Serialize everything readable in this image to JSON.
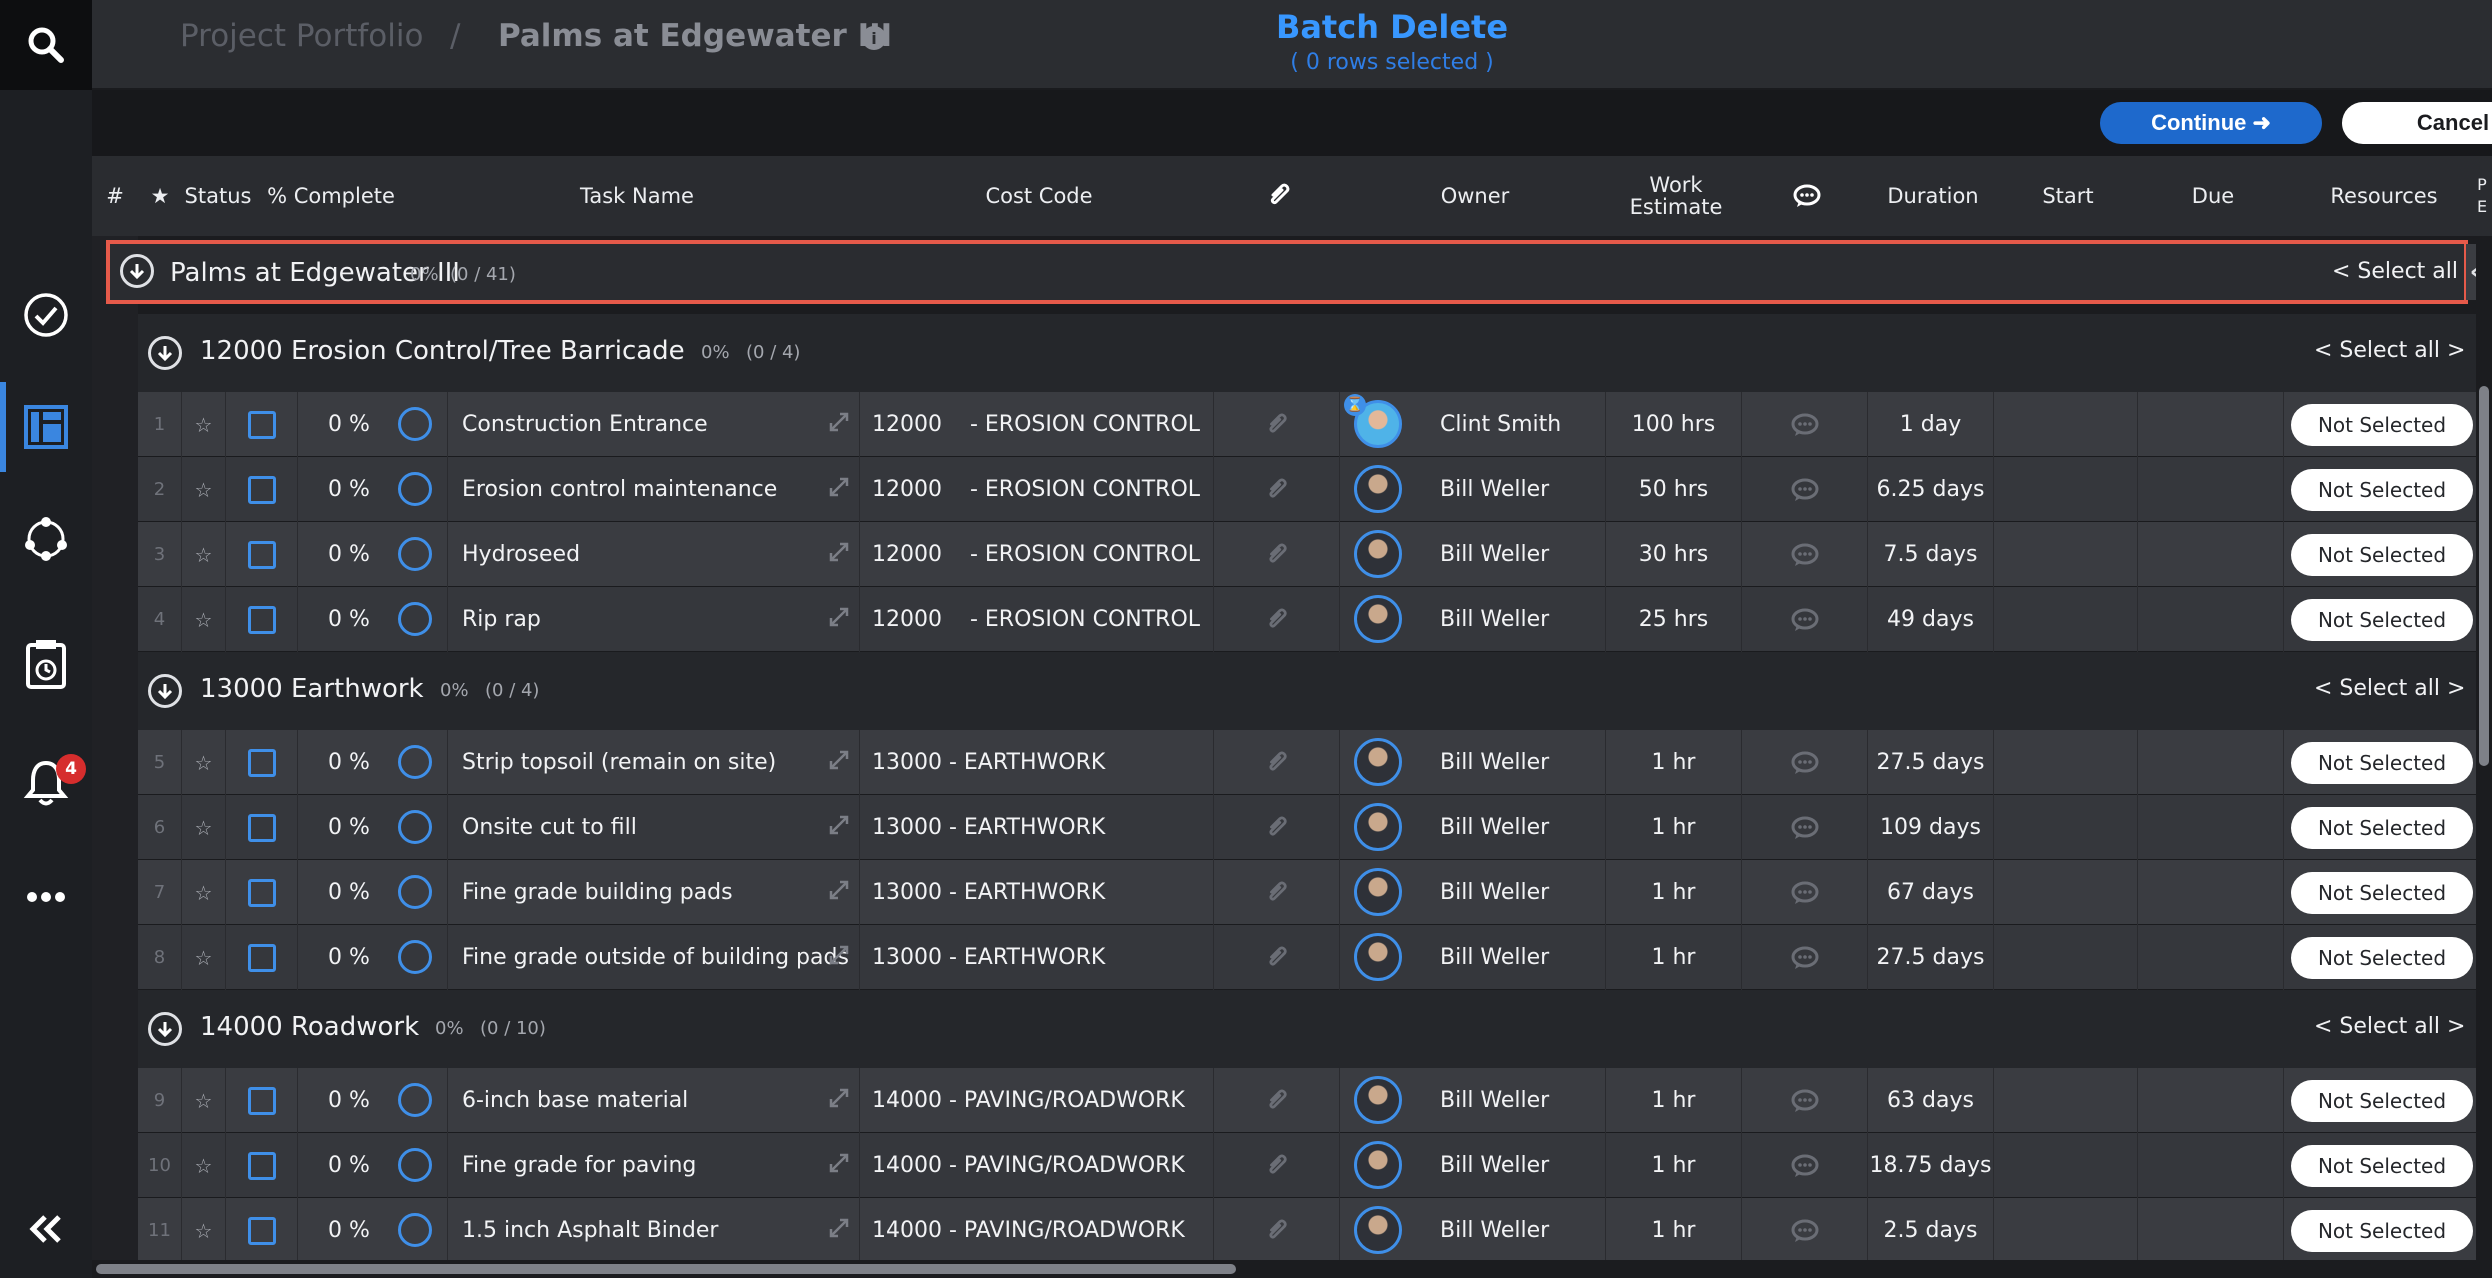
{
  "header": {
    "breadcrumb_root": "Project Portfolio",
    "breadcrumb_sep": "/",
    "breadcrumb_current": "Palms at Edgewater III",
    "info_glyph": "i",
    "batch_title": "Batch Delete",
    "batch_subtitle": "( 0 rows selected )"
  },
  "sidebar": {
    "notifications_count": "4",
    "items": [
      {
        "icon": "search-icon"
      },
      {
        "icon": "check-circle-icon"
      },
      {
        "icon": "board-icon"
      },
      {
        "icon": "network-icon"
      },
      {
        "icon": "timesheet-icon"
      },
      {
        "icon": "bell-icon"
      },
      {
        "icon": "more-icon"
      },
      {
        "icon": "double-chevron-left-icon"
      }
    ]
  },
  "actions": {
    "continue_label": "Continue ➜",
    "cancel_label": "Cancel"
  },
  "columns": {
    "num": "#",
    "star": "★",
    "status": "Status",
    "pct": "% Complete",
    "task": "Task Name",
    "cost": "Cost Code",
    "attach": "📎",
    "owner": "Owner",
    "work": "Work Estimate",
    "comment": "💬",
    "duration": "Duration",
    "start": "Start",
    "due": "Due",
    "resources": "Resources",
    "extra": "P E"
  },
  "project": {
    "name": "Palms at Edgewater III",
    "pct": "0%",
    "count": "(0 / 41)",
    "select_all": "< Select all >",
    "collapse_glyph": "«"
  },
  "groups": [
    {
      "title": "12000 Erosion Control/Tree Barricade",
      "pct": "0%",
      "count": "(0 / 4)",
      "select_all": "< Select all >",
      "rows": [
        {
          "num": "1",
          "pct": "0 %",
          "task": "Construction Entrance",
          "cost": "12000    - EROSION CONTROL",
          "owner": "Clint Smith",
          "work": "100 hrs",
          "duration": "1 day",
          "resources": "Not Selected"
        },
        {
          "num": "2",
          "pct": "0 %",
          "task": "Erosion control maintenance",
          "cost": "12000    - EROSION CONTROL",
          "owner": "Bill Weller",
          "work": "50 hrs",
          "duration": "6.25 days",
          "resources": "Not Selected"
        },
        {
          "num": "3",
          "pct": "0 %",
          "task": "Hydroseed",
          "cost": "12000    - EROSION CONTROL",
          "owner": "Bill Weller",
          "work": "30 hrs",
          "duration": "7.5 days",
          "resources": "Not Selected"
        },
        {
          "num": "4",
          "pct": "0 %",
          "task": "Rip rap",
          "cost": "12000    - EROSION CONTROL",
          "owner": "Bill Weller",
          "work": "25 hrs",
          "duration": "49 days",
          "resources": "Not Selected"
        }
      ]
    },
    {
      "title": "13000 Earthwork",
      "pct": "0%",
      "count": "(0 / 4)",
      "select_all": "< Select all >",
      "rows": [
        {
          "num": "5",
          "pct": "0 %",
          "task": "Strip topsoil (remain on site)",
          "cost": "13000 - EARTHWORK",
          "owner": "Bill Weller",
          "work": "1 hr",
          "duration": "27.5 days",
          "resources": "Not Selected"
        },
        {
          "num": "6",
          "pct": "0 %",
          "task": "Onsite cut to fill",
          "cost": "13000 - EARTHWORK",
          "owner": "Bill Weller",
          "work": "1 hr",
          "duration": "109 days",
          "resources": "Not Selected"
        },
        {
          "num": "7",
          "pct": "0 %",
          "task": "Fine grade building pads",
          "cost": "13000 - EARTHWORK",
          "owner": "Bill Weller",
          "work": "1 hr",
          "duration": "67 days",
          "resources": "Not Selected"
        },
        {
          "num": "8",
          "pct": "0 %",
          "task": "Fine grade outside of building pads",
          "cost": "13000 - EARTHWORK",
          "owner": "Bill Weller",
          "work": "1 hr",
          "duration": "27.5 days",
          "resources": "Not Selected"
        }
      ]
    },
    {
      "title": "14000 Roadwork",
      "pct": "0%",
      "count": "(0 / 10)",
      "select_all": "< Select all >",
      "rows": [
        {
          "num": "9",
          "pct": "0 %",
          "task": "6-inch base material",
          "cost": "14000 - PAVING/ROADWORK",
          "owner": "Bill Weller",
          "work": "1 hr",
          "duration": "63 days",
          "resources": "Not Selected"
        },
        {
          "num": "10",
          "pct": "0 %",
          "task": "Fine grade for paving",
          "cost": "14000 - PAVING/ROADWORK",
          "owner": "Bill Weller",
          "work": "1 hr",
          "duration": "18.75 days",
          "resources": "Not Selected"
        },
        {
          "num": "11",
          "pct": "0 %",
          "task": "1.5 inch Asphalt Binder",
          "cost": "14000 - PAVING/ROADWORK",
          "owner": "Bill Weller",
          "work": "1 hr",
          "duration": "2.5 days",
          "resources": "Not Selected"
        }
      ]
    }
  ],
  "colors": {
    "accent": "#3f8fe8",
    "highlight_border": "#e65a4a",
    "badge": "#d62d2d"
  }
}
